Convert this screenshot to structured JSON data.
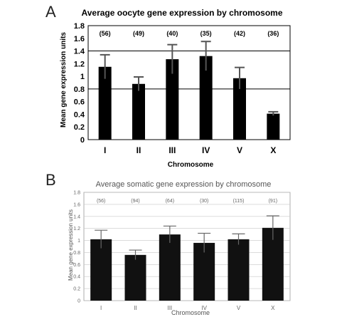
{
  "panels": [
    {
      "letter": "A"
    },
    {
      "letter": "B"
    }
  ],
  "chart_data": [
    {
      "type": "bar",
      "title": "Average oocyte gene expression by chromosome",
      "xlabel": "Chromosome",
      "ylabel": "Mean gene expression units",
      "categories": [
        "I",
        "II",
        "III",
        "IV",
        "V",
        "X"
      ],
      "values": [
        1.15,
        0.88,
        1.27,
        1.32,
        0.97,
        0.41
      ],
      "errors": [
        0.19,
        0.11,
        0.23,
        0.23,
        0.17,
        0.03
      ],
      "counts": [
        "(56)",
        "(49)",
        "(40)",
        "(35)",
        "(42)",
        "(36)"
      ],
      "ylim": [
        0,
        1.8
      ],
      "yticks": [
        "0",
        "0.2",
        "0.4",
        "0.6",
        "0.8",
        "1",
        "1.2",
        "1.4",
        "1.6",
        "1.8"
      ],
      "reference_lines": [
        0.8,
        1.4
      ],
      "bar_color": "#000000",
      "grid": false
    },
    {
      "type": "bar",
      "title": "Average somatic gene expression by chromosome",
      "xlabel": "Chromosome",
      "ylabel": "Mean gene expression units",
      "categories": [
        "I",
        "II",
        "III",
        "IV",
        "V",
        "X"
      ],
      "values": [
        1.02,
        0.76,
        1.1,
        0.96,
        1.02,
        1.21
      ],
      "errors": [
        0.15,
        0.08,
        0.14,
        0.16,
        0.09,
        0.2
      ],
      "counts": [
        "(56)",
        "(94)",
        "(64)",
        "(30)",
        "(115)",
        "(91)"
      ],
      "ylim": [
        0,
        1.8
      ],
      "yticks": [
        "0",
        "0.2",
        "0.4",
        "0.6",
        "0.8",
        "1",
        "1.2",
        "1.4",
        "1.6",
        "1.8"
      ],
      "bar_color": "#111111",
      "grid": true
    }
  ]
}
